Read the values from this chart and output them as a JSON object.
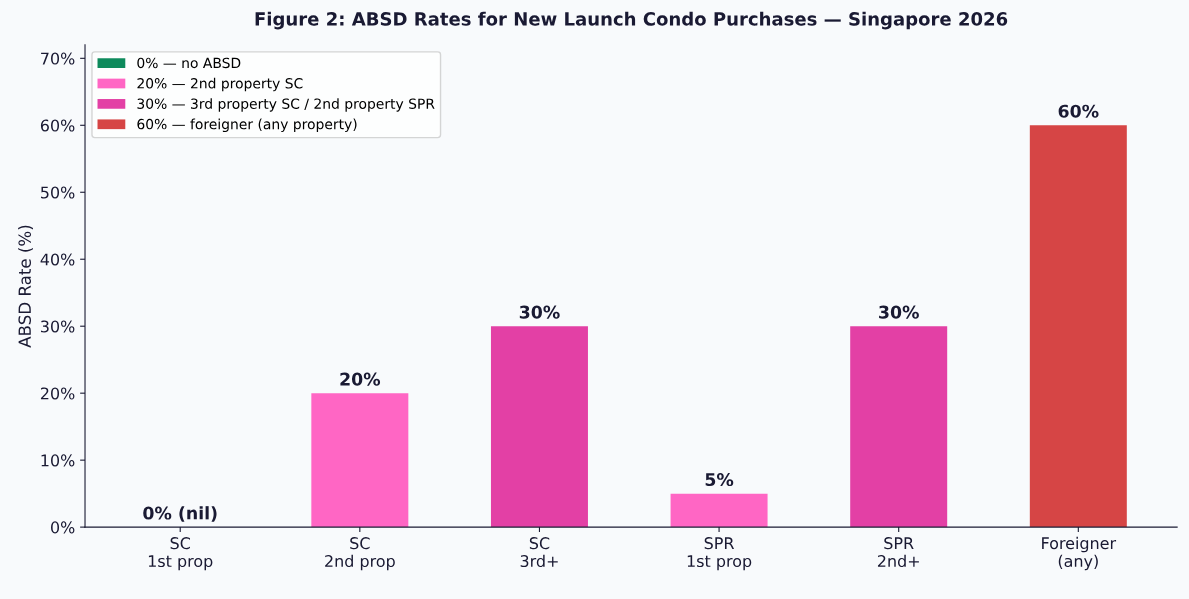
{
  "chart_data": {
    "type": "bar",
    "title": "Figure 2: ABSD Rates for New Launch Condo Purchases — Singapore 2026",
    "ylabel": "ABSD Rate (%)",
    "categories": [
      "SC\n1st prop",
      "SC\n2nd prop",
      "SC\n3rd+",
      "SPR\n1st prop",
      "SPR\n2nd+",
      "Foreigner\n(any)"
    ],
    "series": [
      {
        "name": "0% — no ABSD",
        "color": "#0e8a5c",
        "values": [
          0,
          null,
          null,
          null,
          null,
          null
        ],
        "value_labels": [
          "0% (nil)",
          null,
          null,
          null,
          null,
          null
        ]
      },
      {
        "name": "20% — 2nd property SC",
        "color": "#ff66c4",
        "values": [
          null,
          20,
          null,
          5,
          null,
          null
        ],
        "value_labels": [
          null,
          "20%",
          null,
          "5%",
          null,
          null
        ]
      },
      {
        "name": "30% — 3rd property SC / 2nd property SPR",
        "color": "#e340a5",
        "values": [
          null,
          null,
          30,
          null,
          30,
          null
        ],
        "value_labels": [
          null,
          null,
          "30%",
          null,
          "30%",
          null
        ]
      },
      {
        "name": "60% — foreigner (any property)",
        "color": "#d64545",
        "values": [
          null,
          null,
          null,
          null,
          null,
          60
        ],
        "value_labels": [
          null,
          null,
          null,
          null,
          null,
          "60%"
        ]
      }
    ],
    "stacked": true,
    "ylim": [
      0,
      72
    ],
    "yticks": [
      {
        "value": 0,
        "label": "0%"
      },
      {
        "value": 10,
        "label": "10%"
      },
      {
        "value": 20,
        "label": "20%"
      },
      {
        "value": 30,
        "label": "30%"
      },
      {
        "value": 40,
        "label": "40%"
      },
      {
        "value": 50,
        "label": "50%"
      },
      {
        "value": 60,
        "label": "60%"
      },
      {
        "value": 70,
        "label": "70%"
      }
    ],
    "grid": false,
    "legend": "top left"
  }
}
